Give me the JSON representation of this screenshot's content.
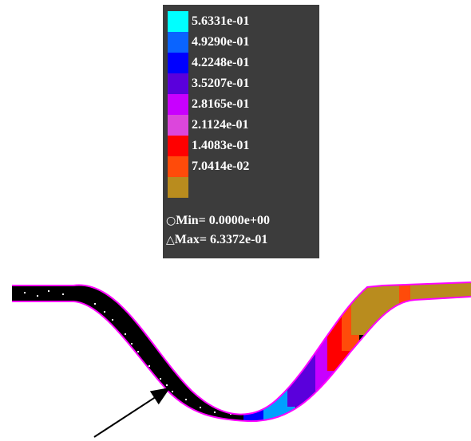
{
  "legend": {
    "entries": [
      {
        "label": "5.6331e-01",
        "color": "#00ffff"
      },
      {
        "label": "4.9290e-01",
        "color": "#0a64ff"
      },
      {
        "label": "4.2248e-01",
        "color": "#0000ff"
      },
      {
        "label": "3.5207e-01",
        "color": "#5a00dc"
      },
      {
        "label": "2.8165e-01",
        "color": "#c800ff"
      },
      {
        "label": "2.1124e-01",
        "color": "#dc46dc"
      },
      {
        "label": "1.4083e-01",
        "color": "#ff0000"
      },
      {
        "label": "7.0414e-02",
        "color": "#ff4b0a"
      },
      {
        "label": "",
        "color": "#b98c1e"
      }
    ],
    "min": {
      "symbol": "○",
      "text": "Min= 0.0000e+00"
    },
    "max": {
      "symbol": "△",
      "text": "Max= 6.3372e-01"
    }
  },
  "colors": {
    "background": "#ffffff",
    "legend_background": "#3c3c3c",
    "outline": "#ff00ff",
    "low_region": "#000000",
    "arrow": "#000000"
  }
}
